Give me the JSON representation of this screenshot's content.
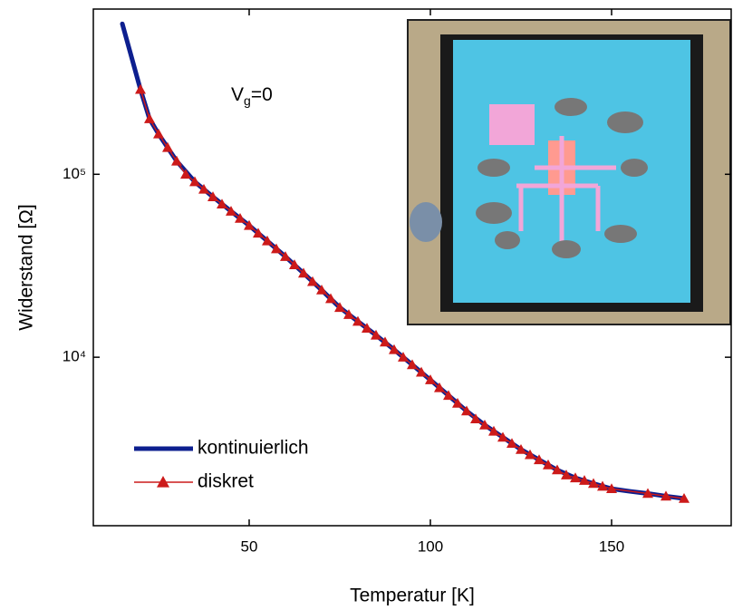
{
  "chart_data": {
    "type": "line",
    "x_label": "Temperatur [K]",
    "y_label": "Widerstand [Ω]",
    "annotation": {
      "base": "V",
      "subscript": "g",
      "tail": "=0"
    },
    "yscale": "log",
    "legend_loc": "lower left",
    "xlim": [
      7,
      183
    ],
    "ylim": [
      1200,
      800000
    ],
    "xticks": [
      50,
      100,
      150
    ],
    "yticks": [
      {
        "value": 10000,
        "label": "10⁴"
      },
      {
        "value": 100000,
        "label": "10⁵"
      }
    ],
    "series": [
      {
        "name": "kontinuierlich",
        "color": "#0d1f8f",
        "line_width": 5,
        "x": [
          15,
          17.5,
          20,
          22.5,
          25,
          30,
          35,
          40,
          45,
          50,
          55,
          60,
          65,
          70,
          75,
          80,
          85,
          90,
          95,
          100,
          105,
          110,
          115,
          120,
          125,
          130,
          135,
          140,
          145,
          150,
          155,
          160,
          165,
          170
        ],
        "values": [
          664000,
          440000,
          291000,
          201000,
          166000,
          118000,
          91000,
          75300,
          62800,
          52500,
          43200,
          35500,
          28800,
          23300,
          18700,
          15700,
          13200,
          11000,
          9100,
          7520,
          6180,
          5080,
          4260,
          3650,
          3130,
          2750,
          2420,
          2190,
          2040,
          1910,
          1850,
          1800,
          1740,
          1690
        ]
      },
      {
        "name": "diskret",
        "color": "#cc1a1a",
        "line_width": 1.5,
        "marker": "triangle",
        "x": [
          20,
          22.5,
          25,
          27.5,
          30,
          32.5,
          35,
          37.5,
          40,
          42.5,
          45,
          47.5,
          50,
          52.5,
          55,
          57.5,
          60,
          62.5,
          65,
          67.5,
          70,
          72.5,
          75,
          77.5,
          80,
          82.5,
          85,
          87.5,
          90,
          92.5,
          95,
          97.5,
          100,
          102.5,
          105,
          107.5,
          110,
          112.5,
          115,
          117.5,
          120,
          122.5,
          125,
          127.5,
          130,
          132.5,
          135,
          137.5,
          140,
          142.5,
          145,
          147.5,
          150,
          160,
          165,
          170
        ],
        "values": [
          291000,
          201000,
          166000,
          140000,
          118000,
          100000,
          91000,
          82800,
          75300,
          68700,
          62800,
          57400,
          52500,
          47600,
          43200,
          39100,
          35500,
          32000,
          28800,
          25900,
          23300,
          20900,
          18700,
          17100,
          15700,
          14400,
          13200,
          12100,
          11000,
          10000,
          9100,
          8280,
          7520,
          6810,
          6180,
          5600,
          5080,
          4600,
          4260,
          3940,
          3650,
          3380,
          3130,
          2930,
          2750,
          2580,
          2420,
          2270,
          2190,
          2120,
          2040,
          1970,
          1910,
          1800,
          1740,
          1690
        ]
      }
    ]
  }
}
